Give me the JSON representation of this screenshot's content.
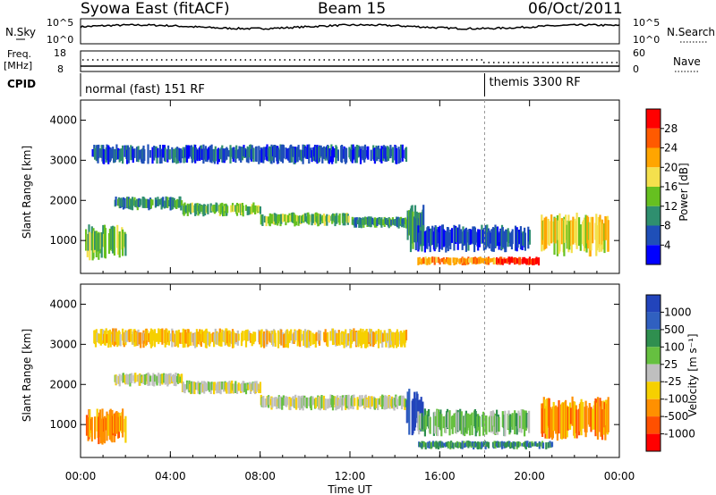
{
  "header": {
    "title": "Syowa East (fitACF)",
    "beam": "Beam 15",
    "date": "06/Oct/2011"
  },
  "params": {
    "nsky_label": "N.Sky",
    "nsky_ticks": [
      "10^5",
      "10^0"
    ],
    "nsearch_label": "N.Search",
    "nsearch_ticks": [
      "10^5",
      "10^0"
    ],
    "freq_label_1": "Freq.",
    "freq_label_2": "[MHz]",
    "freq_ticks": [
      "18",
      "8"
    ],
    "nave_label": "Nave",
    "nave_ticks": [
      "60",
      "0"
    ],
    "cpid_label": "CPID",
    "cpid_segments": [
      {
        "text": "normal (fast) 151 RF",
        "start_hour": 0
      },
      {
        "text": "themis 3300 RF",
        "start_hour": 18
      }
    ]
  },
  "colors": {
    "power": [
      "#0000ff",
      "#1f4fb8",
      "#2f8f6f",
      "#66c020",
      "#f4e04d",
      "#ffa500",
      "#ff5a00",
      "#ff0000"
    ],
    "velocity": [
      "#2244bb",
      "#3060c0",
      "#2f8f4f",
      "#66c040",
      "#bfbfbf",
      "#f6d000",
      "#ff9000",
      "#ff5000",
      "#ff0000"
    ]
  },
  "chart_data": [
    {
      "type": "heatmap",
      "quantity": "power",
      "xlabel": "",
      "ylabel": "Slant Range [km]",
      "xlim": [
        0,
        24
      ],
      "ylim": [
        180,
        4500
      ],
      "y_ticks": [
        1000,
        2000,
        3000,
        4000
      ],
      "colorbar_label": "Power [dB]",
      "colorbar_ticks": [
        "4",
        "8",
        "12",
        "16",
        "20",
        "24",
        "28"
      ],
      "echo_bands": [
        {
          "t0": 0.2,
          "t1": 2.0,
          "r0": 500,
          "r1": 1400,
          "level": 3
        },
        {
          "t0": 1.5,
          "t1": 4.5,
          "r0": 1750,
          "r1": 2100,
          "level": 2
        },
        {
          "t0": 4.5,
          "t1": 8.0,
          "r0": 1600,
          "r1": 1950,
          "level": 3
        },
        {
          "t0": 8.0,
          "t1": 12.0,
          "r0": 1350,
          "r1": 1700,
          "level": 3
        },
        {
          "t0": 12.0,
          "t1": 14.5,
          "r0": 1300,
          "r1": 1600,
          "level": 2
        },
        {
          "t0": 0.5,
          "t1": 14.5,
          "r0": 2900,
          "r1": 3400,
          "level": 1
        },
        {
          "t0": 14.5,
          "t1": 15.3,
          "r0": 700,
          "r1": 1900,
          "level": 2
        },
        {
          "t0": 15.0,
          "t1": 18.5,
          "r0": 380,
          "r1": 600,
          "level": 5
        },
        {
          "t0": 18.5,
          "t1": 20.5,
          "r0": 380,
          "r1": 600,
          "level": 7
        },
        {
          "t0": 20.5,
          "t1": 23.5,
          "r0": 600,
          "r1": 1700,
          "level": 4
        },
        {
          "t0": 15.0,
          "t1": 20.0,
          "r0": 700,
          "r1": 1400,
          "level": 1
        }
      ]
    },
    {
      "type": "heatmap",
      "quantity": "velocity",
      "xlabel": "Time UT",
      "ylabel": "Slant Range [km]",
      "xlim": [
        0,
        24
      ],
      "ylim": [
        180,
        4500
      ],
      "x_ticks": [
        "00:00",
        "04:00",
        "08:00",
        "12:00",
        "16:00",
        "20:00",
        "00:00"
      ],
      "y_ticks": [
        1000,
        2000,
        3000,
        4000
      ],
      "colorbar_label": "Velocity [m s⁻¹]",
      "colorbar_ticks": [
        "1000",
        "500",
        "100",
        "25",
        "-25",
        "-100",
        "-500",
        "-1000"
      ],
      "echo_bands": [
        {
          "t0": 0.2,
          "t1": 2.0,
          "r0": 500,
          "r1": 1400,
          "level": 6
        },
        {
          "t0": 1.5,
          "t1": 4.5,
          "r0": 1950,
          "r1": 2300,
          "level": 4
        },
        {
          "t0": 4.5,
          "t1": 8.0,
          "r0": 1750,
          "r1": 2100,
          "level": 4
        },
        {
          "t0": 8.0,
          "t1": 14.5,
          "r0": 1350,
          "r1": 1750,
          "level": 4
        },
        {
          "t0": 0.5,
          "t1": 14.5,
          "r0": 2900,
          "r1": 3400,
          "level": 5
        },
        {
          "t0": 14.5,
          "t1": 15.3,
          "r0": 700,
          "r1": 1900,
          "level": 0
        },
        {
          "t0": 15.0,
          "t1": 21.0,
          "r0": 380,
          "r1": 600,
          "level": 2
        },
        {
          "t0": 20.5,
          "t1": 23.5,
          "r0": 600,
          "r1": 1700,
          "level": 6
        },
        {
          "t0": 15.0,
          "t1": 20.0,
          "r0": 700,
          "r1": 1400,
          "level": 3
        }
      ]
    }
  ]
}
